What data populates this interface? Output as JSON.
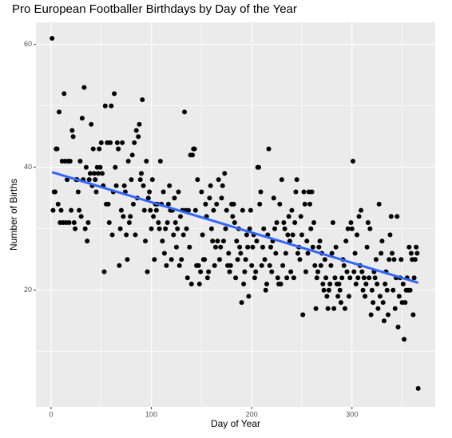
{
  "chart_data": {
    "type": "scatter",
    "title": "Pro European Footballer Birthdays by Day of the Year",
    "x_label": "Day of Year",
    "y_label": "Number of Births",
    "xlim": [
      -15.1,
      383
    ],
    "ylim": [
      1,
      63.6
    ],
    "xticks": [
      0,
      100,
      200,
      300
    ],
    "yticks": [
      20,
      40,
      60
    ],
    "minor_xticks": [
      50,
      150,
      250,
      350
    ],
    "minor_yticks": [
      10,
      30,
      50
    ],
    "grid": true,
    "color": "#000000",
    "x": [
      1,
      2,
      3,
      4,
      5,
      6,
      7,
      8,
      9,
      10,
      11,
      12,
      13,
      14,
      15,
      16,
      17,
      18,
      19,
      20,
      21,
      22,
      23,
      24,
      25,
      26,
      27,
      28,
      29,
      30,
      31,
      32,
      33,
      34,
      35,
      36,
      37,
      38,
      39,
      40,
      41,
      42,
      43,
      44,
      45,
      46,
      47,
      48,
      49,
      50,
      51,
      52,
      53,
      54,
      55,
      56,
      57,
      58,
      59,
      60,
      61,
      62,
      63,
      64,
      65,
      66,
      67,
      68,
      69,
      70,
      71,
      72,
      73,
      74,
      75,
      76,
      77,
      78,
      79,
      80,
      81,
      82,
      83,
      84,
      85,
      86,
      87,
      88,
      89,
      90,
      91,
      92,
      93,
      94,
      95,
      96,
      97,
      98,
      99,
      100,
      101,
      102,
      103,
      104,
      105,
      106,
      107,
      108,
      109,
      110,
      111,
      112,
      113,
      114,
      115,
      116,
      117,
      118,
      119,
      120,
      121,
      122,
      123,
      124,
      125,
      126,
      127,
      128,
      129,
      130,
      131,
      132,
      133,
      134,
      135,
      136,
      137,
      138,
      139,
      140,
      141,
      142,
      143,
      144,
      145,
      146,
      147,
      148,
      149,
      150,
      151,
      152,
      153,
      154,
      155,
      156,
      157,
      158,
      159,
      160,
      161,
      162,
      163,
      164,
      165,
      166,
      167,
      168,
      169,
      170,
      171,
      172,
      173,
      174,
      175,
      176,
      177,
      178,
      179,
      180,
      181,
      182,
      183,
      184,
      185,
      186,
      187,
      188,
      189,
      190,
      191,
      192,
      193,
      194,
      195,
      196,
      197,
      198,
      199,
      200,
      201,
      202,
      203,
      204,
      205,
      206,
      207,
      208,
      209,
      210,
      211,
      212,
      213,
      214,
      215,
      216,
      217,
      218,
      219,
      220,
      221,
      222,
      223,
      224,
      225,
      226,
      227,
      228,
      229,
      230,
      231,
      232,
      233,
      234,
      235,
      236,
      237,
      238,
      239,
      240,
      241,
      242,
      243,
      244,
      245,
      246,
      247,
      248,
      249,
      250,
      251,
      252,
      253,
      254,
      255,
      256,
      257,
      258,
      259,
      260,
      261,
      262,
      263,
      264,
      265,
      266,
      267,
      268,
      269,
      270,
      271,
      272,
      273,
      274,
      275,
      276,
      277,
      278,
      279,
      280,
      281,
      282,
      283,
      284,
      285,
      286,
      287,
      288,
      289,
      290,
      291,
      292,
      293,
      294,
      295,
      296,
      297,
      298,
      299,
      300,
      301,
      302,
      303,
      304,
      305,
      306,
      307,
      308,
      309,
      310,
      311,
      312,
      313,
      314,
      315,
      316,
      317,
      318,
      319,
      320,
      321,
      322,
      323,
      324,
      325,
      326,
      327,
      328,
      329,
      330,
      331,
      332,
      333,
      334,
      335,
      336,
      337,
      338,
      339,
      340,
      341,
      342,
      343,
      344,
      345,
      346,
      347,
      348,
      349,
      350,
      351,
      352,
      353,
      354,
      355,
      356,
      357,
      358,
      359,
      360,
      361,
      362,
      363,
      364,
      365,
      366
    ],
    "values": [
      61,
      33,
      36,
      36,
      43,
      43,
      34,
      49,
      31,
      33,
      41,
      31,
      52,
      41,
      31,
      38,
      41,
      31,
      41,
      33,
      46,
      45,
      31,
      30,
      38,
      38,
      36,
      33,
      41,
      32,
      48,
      38,
      53,
      30,
      40,
      28,
      31,
      38,
      39,
      47,
      37,
      43,
      39,
      38,
      36,
      40,
      39,
      43,
      40,
      44,
      39,
      37,
      23,
      50,
      34,
      44,
      34,
      31,
      44,
      50,
      29,
      36,
      52,
      40,
      37,
      44,
      43,
      24,
      30,
      33,
      44,
      32,
      37,
      36,
      29,
      25,
      41,
      31,
      32,
      38,
      42,
      34,
      44,
      29,
      46,
      35,
      45,
      47,
      38,
      39,
      51,
      37,
      33,
      28,
      41,
      23,
      35,
      36,
      33,
      30,
      38,
      32,
      25,
      34,
      33,
      34,
      31,
      30,
      41,
      34,
      28,
      36,
      26,
      30,
      24,
      31,
      34,
      37,
      33,
      25,
      33,
      29,
      35,
      31,
      27,
      30,
      36,
      24,
      32,
      25,
      33,
      29,
      49,
      33,
      30,
      22,
      33,
      27,
      42,
      21,
      42,
      43,
      43,
      33,
      24,
      38,
      24,
      21,
      23,
      36,
      29,
      25,
      25,
      34,
      32,
      22,
      23,
      35,
      37,
      30,
      28,
      33,
      24,
      27,
      34,
      28,
      38,
      25,
      27,
      35,
      37,
      28,
      39,
      30,
      33,
      24,
      26,
      23,
      24,
      34,
      32,
      34,
      31,
      22,
      28,
      25,
      30,
      27,
      26,
      18,
      33,
      21,
      23,
      25,
      29,
      27,
      19,
      30,
      33,
      24,
      27,
      29,
      22,
      23,
      28,
      40,
      40,
      34,
      36,
      24,
      27,
      30,
      25,
      20,
      21,
      29,
      43,
      24,
      27,
      23,
      28,
      35,
      30,
      26,
      31,
      22,
      21,
      34,
      21,
      38,
      24,
      31,
      30,
      26,
      22,
      29,
      32,
      28,
      23,
      33,
      29,
      22,
      31,
      36,
      38,
      26,
      27,
      25,
      32,
      29,
      16,
      36,
      34,
      23,
      28,
      26,
      36,
      34,
      30,
      36,
      27,
      31,
      24,
      17,
      22,
      23,
      27,
      28,
      24,
      26,
      21,
      20,
      25,
      22,
      19,
      17,
      20,
      21,
      24,
      26,
      31,
      17,
      22,
      27,
      21,
      19,
      21,
      20,
      18,
      22,
      25,
      24,
      17,
      28,
      23,
      30,
      19,
      22,
      31,
      30,
      41,
      23,
      26,
      21,
      29,
      22,
      32,
      24,
      33,
      23,
      20,
      22,
      19,
      21,
      27,
      31,
      22,
      30,
      16,
      20,
      18,
      23,
      22,
      25,
      21,
      17,
      34,
      19,
      26,
      28,
      18,
      15,
      21,
      23,
      20,
      16,
      25,
      29,
      32,
      26,
      20,
      25,
      17,
      22,
      32,
      14,
      19,
      22,
      25,
      18,
      21,
      12,
      18,
      20,
      22,
      20,
      27,
      20,
      26,
      25,
      16,
      22,
      25,
      27,
      26,
      4
    ],
    "trend": {
      "x": [
        1,
        366
      ],
      "values": [
        39.2,
        21.2
      ],
      "color": "#3366ff"
    }
  }
}
